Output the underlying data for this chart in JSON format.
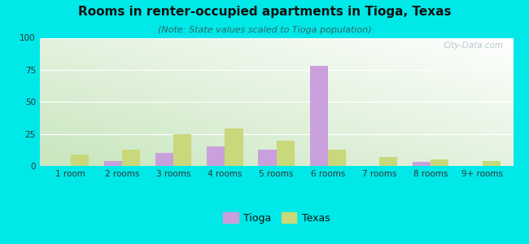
{
  "categories": [
    "1 room",
    "2 rooms",
    "3 rooms",
    "4 rooms",
    "5 rooms",
    "6 rooms",
    "7 rooms",
    "8 rooms",
    "9+ rooms"
  ],
  "tioga": [
    0,
    4,
    10,
    15,
    13,
    78,
    0,
    3,
    0
  ],
  "texas": [
    9,
    13,
    25,
    29,
    20,
    13,
    7,
    5,
    4
  ],
  "tioga_color": "#c9a0dc",
  "texas_color": "#c8d87a",
  "title": "Rooms in renter-occupied apartments in Tioga, Texas",
  "subtitle": "(Note: State values scaled to Tioga population)",
  "bg_outer": "#00e8e8",
  "ylim": [
    0,
    100
  ],
  "yticks": [
    0,
    25,
    50,
    75,
    100
  ],
  "bar_width": 0.35,
  "title_fontsize": 11,
  "subtitle_fontsize": 8,
  "tick_fontsize": 7.5,
  "legend_fontsize": 9
}
